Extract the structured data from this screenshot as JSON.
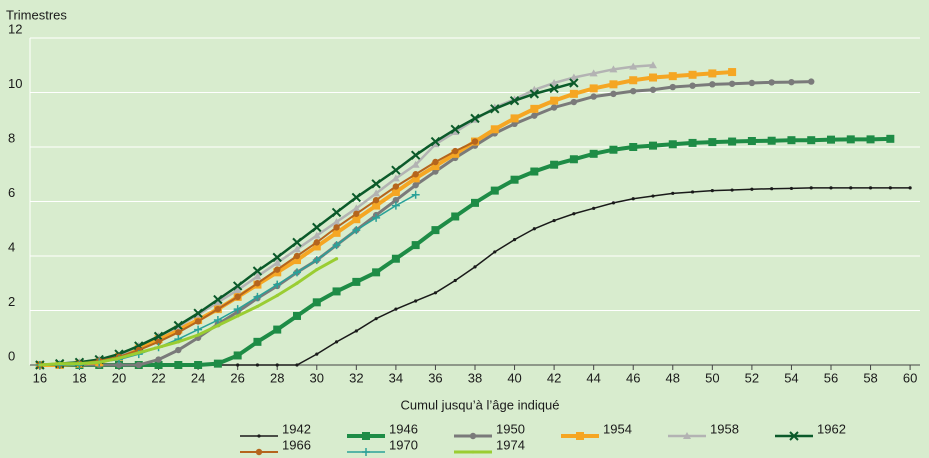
{
  "chart_data": {
    "type": "line",
    "y_label": "Trimestres",
    "x_label": "Cumul jusqu’à l’âge indiqué",
    "x": [
      16,
      17,
      18,
      19,
      20,
      21,
      22,
      23,
      24,
      25,
      26,
      27,
      28,
      29,
      30,
      31,
      32,
      33,
      34,
      35,
      36,
      37,
      38,
      39,
      40,
      41,
      42,
      43,
      44,
      45,
      46,
      47,
      48,
      49,
      50,
      51,
      52,
      53,
      54,
      55,
      56,
      57,
      58,
      59,
      60
    ],
    "xlim": [
      15.5,
      60.5
    ],
    "xticks": [
      16,
      18,
      20,
      22,
      24,
      26,
      28,
      30,
      32,
      34,
      36,
      38,
      40,
      42,
      44,
      46,
      48,
      50,
      52,
      54,
      56,
      58,
      60
    ],
    "ylim": [
      0,
      12
    ],
    "yticks": [
      0,
      2,
      4,
      6,
      8,
      10,
      12
    ],
    "grid": true,
    "background": "#d8ecce",
    "series": [
      {
        "name": "1942",
        "color": "#1a1a1a",
        "marker": "dot",
        "width": 1.5,
        "values": [
          0,
          0,
          0,
          0,
          0,
          0,
          0,
          0,
          0,
          0,
          0,
          0,
          0,
          0,
          0.4,
          0.85,
          1.25,
          1.7,
          2.05,
          2.35,
          2.65,
          3.1,
          3.6,
          4.15,
          4.6,
          5.0,
          5.3,
          5.55,
          5.75,
          5.95,
          6.1,
          6.2,
          6.3,
          6.35,
          6.4,
          6.42,
          6.45,
          6.47,
          6.48,
          6.5,
          6.5,
          6.5,
          6.5,
          6.5,
          6.5
        ]
      },
      {
        "name": "1946",
        "color": "#1e8c46",
        "marker": "square",
        "width": 4,
        "values": [
          0,
          0,
          0,
          0,
          0,
          0,
          0,
          0,
          0,
          0.05,
          0.35,
          0.85,
          1.3,
          1.8,
          2.3,
          2.7,
          3.05,
          3.4,
          3.9,
          4.4,
          4.95,
          5.45,
          5.95,
          6.4,
          6.8,
          7.1,
          7.35,
          7.55,
          7.75,
          7.9,
          8.0,
          8.05,
          8.1,
          8.15,
          8.18,
          8.2,
          8.22,
          8.23,
          8.25,
          8.25,
          8.27,
          8.28,
          8.28,
          8.3,
          null
        ]
      },
      {
        "name": "1950",
        "color": "#7a7a7a",
        "marker": "circle",
        "width": 3,
        "values": [
          0,
          0,
          0,
          0,
          0,
          0,
          0.2,
          0.55,
          1.0,
          1.5,
          1.95,
          2.45,
          2.9,
          3.4,
          3.85,
          4.4,
          4.95,
          5.5,
          6.05,
          6.6,
          7.1,
          7.6,
          8.05,
          8.5,
          8.85,
          9.15,
          9.45,
          9.65,
          9.85,
          9.95,
          10.05,
          10.1,
          10.2,
          10.25,
          10.3,
          10.32,
          10.35,
          10.37,
          10.38,
          10.4,
          null,
          null,
          null,
          null,
          null
        ]
      },
      {
        "name": "1954",
        "color": "#f5a623",
        "marker": "square",
        "width": 4,
        "values": [
          0,
          0,
          0.05,
          0.1,
          0.3,
          0.6,
          0.95,
          1.3,
          1.65,
          2.05,
          2.5,
          2.95,
          3.4,
          3.85,
          4.35,
          4.85,
          5.35,
          5.85,
          6.35,
          6.85,
          7.3,
          7.75,
          8.2,
          8.65,
          9.05,
          9.4,
          9.7,
          9.95,
          10.15,
          10.3,
          10.45,
          10.55,
          10.6,
          10.65,
          10.7,
          10.75,
          null,
          null,
          null,
          null,
          null,
          null,
          null,
          null,
          null
        ]
      },
      {
        "name": "1958",
        "color": "#b3b3b3",
        "marker": "triangle",
        "width": 2.5,
        "values": [
          0,
          0.05,
          0.1,
          0.2,
          0.35,
          0.7,
          1.05,
          1.4,
          1.85,
          2.3,
          2.75,
          3.25,
          3.75,
          4.25,
          4.75,
          5.25,
          5.75,
          6.3,
          6.85,
          7.35,
          8.1,
          8.55,
          9.0,
          9.45,
          9.75,
          10.1,
          10.35,
          10.55,
          10.7,
          10.85,
          10.95,
          11.0,
          null,
          null,
          null,
          null,
          null,
          null,
          null,
          null,
          null,
          null,
          null,
          null,
          null
        ]
      },
      {
        "name": "1962",
        "color": "#0b5a2a",
        "marker": "x",
        "width": 2.5,
        "values": [
          0,
          0.05,
          0.1,
          0.2,
          0.4,
          0.7,
          1.05,
          1.45,
          1.9,
          2.4,
          2.9,
          3.45,
          3.95,
          4.5,
          5.05,
          5.6,
          6.15,
          6.65,
          7.15,
          7.7,
          8.2,
          8.65,
          9.05,
          9.4,
          9.7,
          9.95,
          10.15,
          10.35,
          null,
          null,
          null,
          null,
          null,
          null,
          null,
          null,
          null,
          null,
          null,
          null,
          null,
          null,
          null,
          null,
          null
        ]
      },
      {
        "name": "1966",
        "color": "#b5651d",
        "marker": "circle",
        "width": 2,
        "values": [
          0,
          0,
          0.05,
          0.15,
          0.3,
          0.55,
          0.85,
          1.2,
          1.6,
          2.05,
          2.5,
          3.0,
          3.5,
          4.0,
          4.5,
          5.05,
          5.55,
          6.05,
          6.55,
          7.0,
          7.45,
          7.85,
          8.2,
          null,
          null,
          null,
          null,
          null,
          null,
          null,
          null,
          null,
          null,
          null,
          null,
          null,
          null,
          null,
          null,
          null,
          null,
          null,
          null,
          null,
          null
        ]
      },
      {
        "name": "1970",
        "color": "#2aa198",
        "marker": "plus",
        "width": 1.5,
        "values": [
          0,
          0,
          0,
          0.1,
          0.2,
          0.4,
          0.65,
          0.95,
          1.3,
          1.65,
          2.05,
          2.5,
          2.95,
          3.4,
          3.85,
          4.4,
          4.95,
          5.4,
          5.85,
          6.25,
          null,
          null,
          null,
          null,
          null,
          null,
          null,
          null,
          null,
          null,
          null,
          null,
          null,
          null,
          null,
          null,
          null,
          null,
          null,
          null,
          null,
          null,
          null,
          null,
          null
        ]
      },
      {
        "name": "1974",
        "color": "#9acd32",
        "marker": "dot",
        "width": 3,
        "values": [
          0,
          0.05,
          0.05,
          0.1,
          0.25,
          0.45,
          0.65,
          0.85,
          1.1,
          1.45,
          1.8,
          2.15,
          2.55,
          3.0,
          3.5,
          3.9,
          null,
          null,
          null,
          null,
          null,
          null,
          null,
          null,
          null,
          null,
          null,
          null,
          null,
          null,
          null,
          null,
          null,
          null,
          null,
          null,
          null,
          null,
          null,
          null,
          null,
          null,
          null,
          null,
          null
        ]
      }
    ]
  }
}
